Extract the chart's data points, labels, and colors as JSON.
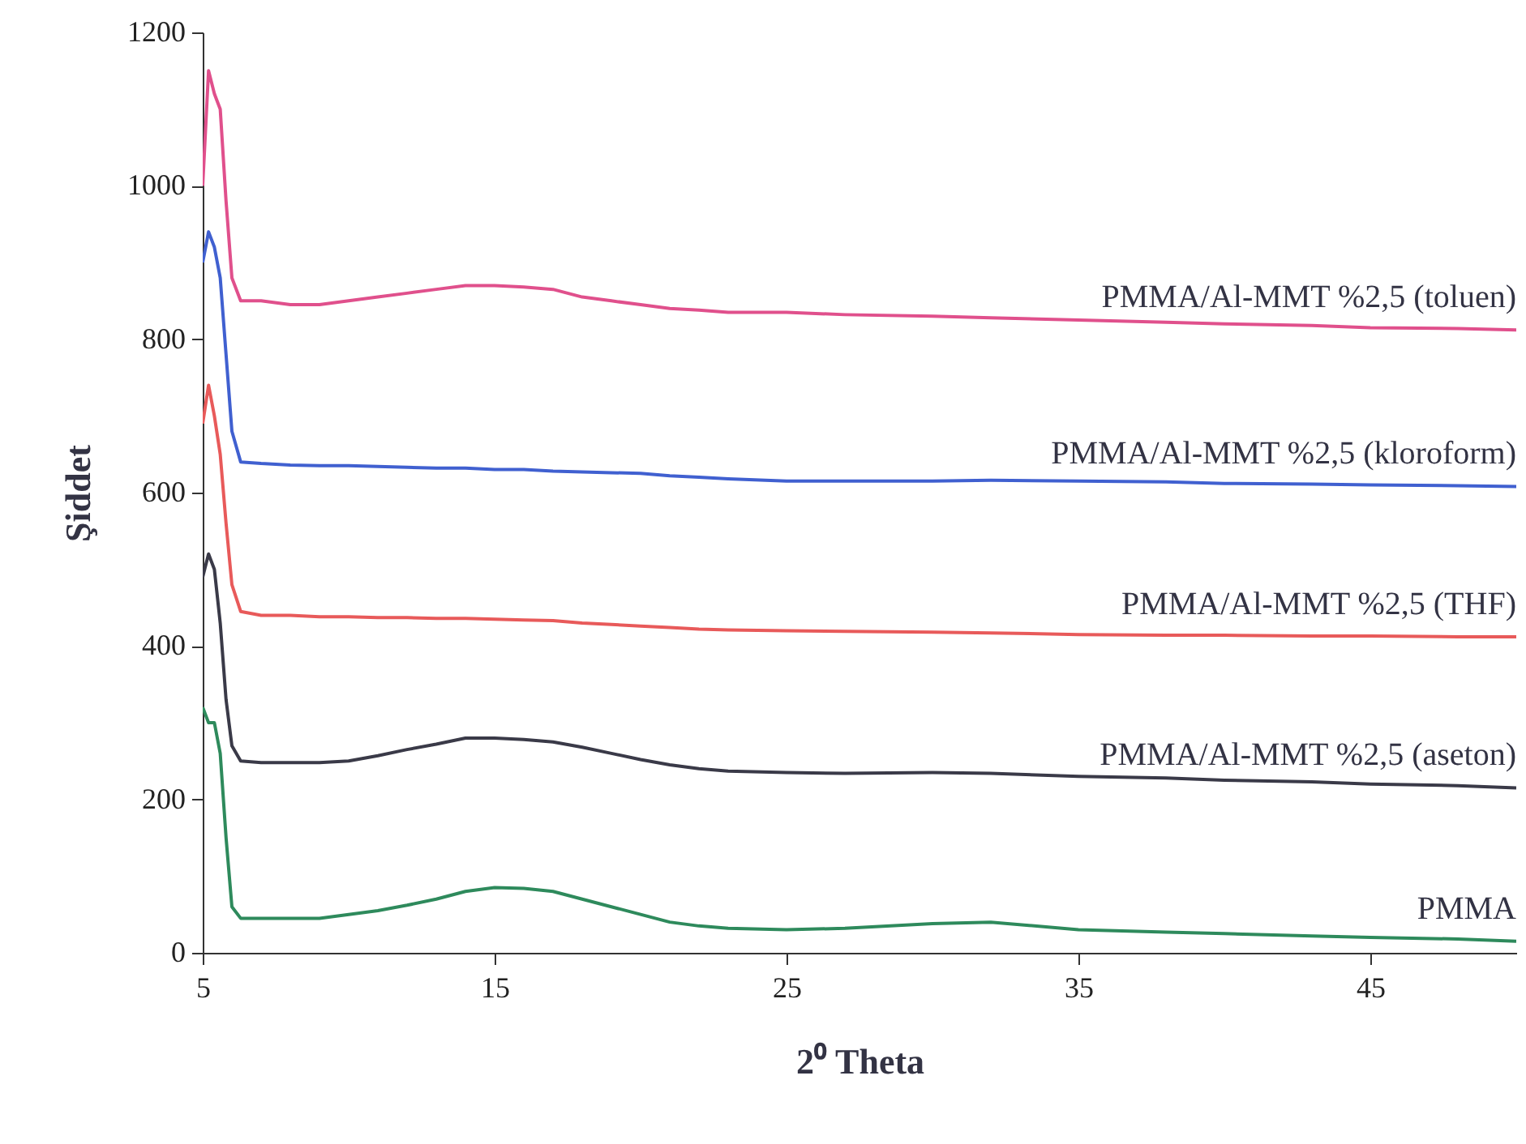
{
  "chart_data": {
    "type": "line",
    "xlabel": "2⁰ Theta",
    "ylabel": "Şiddet",
    "x": [
      5,
      5.2,
      5.4,
      5.6,
      5.8,
      6.0,
      6.3,
      7,
      8,
      9,
      10,
      11,
      12,
      13,
      14,
      15,
      16,
      17,
      18,
      19,
      20,
      21,
      22,
      23,
      25,
      27,
      30,
      32,
      35,
      38,
      40,
      43,
      45,
      48,
      50
    ],
    "series": [
      {
        "name": "PMMA/Al-MMT %2,5 (toluen)",
        "color": "#e0508c",
        "values": [
          1000,
          1150,
          1120,
          1100,
          980,
          880,
          850,
          850,
          845,
          845,
          850,
          855,
          860,
          865,
          870,
          870,
          868,
          865,
          855,
          850,
          845,
          840,
          838,
          835,
          835,
          832,
          830,
          828,
          825,
          822,
          820,
          818,
          815,
          814,
          812
        ]
      },
      {
        "name": "PMMA/Al-MMT %2,5 (kloroform)",
        "color": "#4060d0",
        "values": [
          900,
          940,
          920,
          880,
          780,
          680,
          640,
          638,
          636,
          635,
          635,
          634,
          633,
          632,
          632,
          630,
          630,
          628,
          627,
          626,
          625,
          622,
          620,
          618,
          615,
          615,
          615,
          616,
          615,
          614,
          612,
          611,
          610,
          609,
          608
        ]
      },
      {
        "name": "PMMA/Al-MMT %2,5 (THF)",
        "color": "#e85a5a",
        "values": [
          690,
          740,
          700,
          650,
          560,
          480,
          445,
          440,
          440,
          438,
          438,
          437,
          437,
          436,
          436,
          435,
          434,
          433,
          430,
          428,
          426,
          424,
          422,
          421,
          420,
          419,
          418,
          417,
          415,
          414,
          414,
          413,
          413,
          412,
          412
        ]
      },
      {
        "name": "PMMA/Al-MMT %2,5 (aseton)",
        "color": "#3a3a48",
        "values": [
          490,
          520,
          500,
          430,
          330,
          270,
          250,
          248,
          248,
          248,
          250,
          257,
          265,
          272,
          280,
          280,
          278,
          275,
          268,
          260,
          252,
          245,
          240,
          237,
          235,
          234,
          235,
          234,
          230,
          228,
          225,
          223,
          220,
          218,
          215
        ]
      },
      {
        "name": "PMMA",
        "color": "#2e8a5c",
        "values": [
          320,
          300,
          300,
          260,
          150,
          60,
          45,
          45,
          45,
          45,
          50,
          55,
          62,
          70,
          80,
          85,
          84,
          80,
          70,
          60,
          50,
          40,
          35,
          32,
          30,
          32,
          38,
          40,
          30,
          27,
          25,
          22,
          20,
          18,
          15
        ]
      }
    ],
    "xlim": [
      5,
      50
    ],
    "xticks": [
      5,
      15,
      25,
      35,
      45
    ],
    "ylim": [
      0,
      1200
    ],
    "yticks": [
      0,
      200,
      400,
      600,
      800,
      1000,
      1200
    ],
    "grid": false,
    "line_style": "solid"
  }
}
